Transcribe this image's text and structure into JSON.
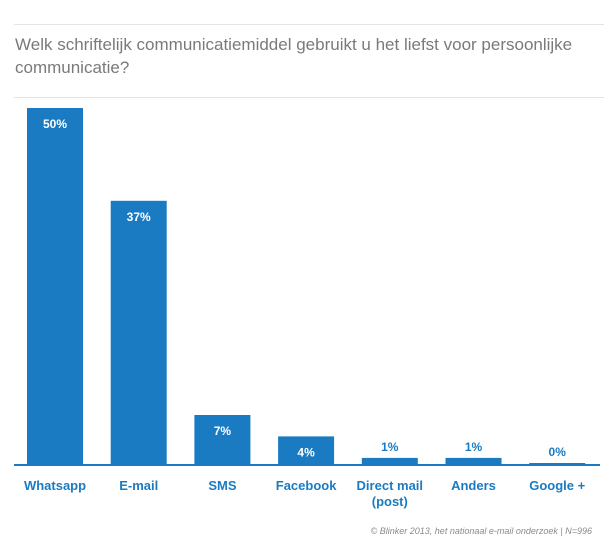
{
  "chart_data": {
    "type": "bar",
    "title": "Welk schriftelijk communicatiemiddel gebruikt u het liefst voor persoonlijke communicatie?",
    "categories": [
      "Whatsapp",
      "E-mail",
      "SMS",
      "Facebook",
      "Direct mail\n(post)",
      "Anders",
      "Google +"
    ],
    "values": [
      50,
      37,
      7,
      4,
      1,
      1,
      0
    ],
    "value_labels": [
      "50%",
      "37%",
      "7%",
      "4%",
      "1%",
      "1%",
      "0%"
    ],
    "ylim": [
      0,
      50
    ],
    "grid": false,
    "bar_color": "#1a7bc2",
    "source": "© Blinker 2013, het nationaal e-mail onderzoek | N=996"
  }
}
